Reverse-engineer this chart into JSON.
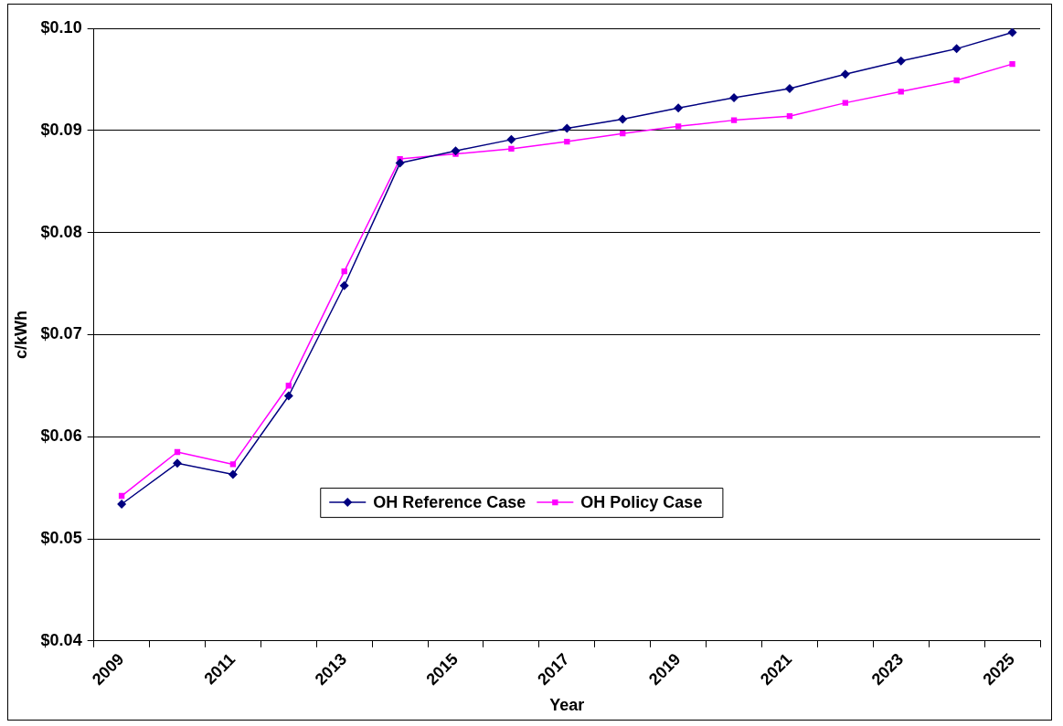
{
  "chart_data": {
    "type": "line",
    "xlabel": "Year",
    "ylabel": "c/kWh",
    "categories": [
      "2009",
      null,
      "2011",
      null,
      "2013",
      null,
      "2015",
      null,
      "2017",
      null,
      "2019",
      null,
      "2021",
      null,
      "2023",
      null,
      "2025"
    ],
    "series": [
      {
        "name": "OH Reference Case",
        "color": "#000080",
        "marker": "diamond",
        "values": [
          0.0534,
          0.0574,
          0.0563,
          0.064,
          0.0748,
          0.0868,
          0.088,
          0.0891,
          0.0902,
          0.0911,
          0.0922,
          0.0932,
          0.0941,
          0.0955,
          0.0968,
          0.098,
          0.0996
        ]
      },
      {
        "name": "OH Policy Case",
        "color": "#ff00ff",
        "marker": "square",
        "values": [
          0.0542,
          0.0585,
          0.0573,
          0.065,
          0.0762,
          0.0872,
          0.0877,
          0.0882,
          0.0889,
          0.0897,
          0.0904,
          0.091,
          0.0914,
          0.0927,
          0.0938,
          0.0949,
          0.0965
        ]
      }
    ],
    "ylim": [
      0.04,
      0.1
    ],
    "yticks": [
      {
        "value": 0.04,
        "label": "$0.04"
      },
      {
        "value": 0.05,
        "label": "$0.05"
      },
      {
        "value": 0.06,
        "label": "$0.06"
      },
      {
        "value": 0.07,
        "label": "$0.07"
      },
      {
        "value": 0.08,
        "label": "$0.08"
      },
      {
        "value": 0.09,
        "label": "$0.09"
      },
      {
        "value": 0.1,
        "label": "$0.10"
      }
    ],
    "grid": "y",
    "legend": "bottom",
    "line_style": "solid"
  }
}
